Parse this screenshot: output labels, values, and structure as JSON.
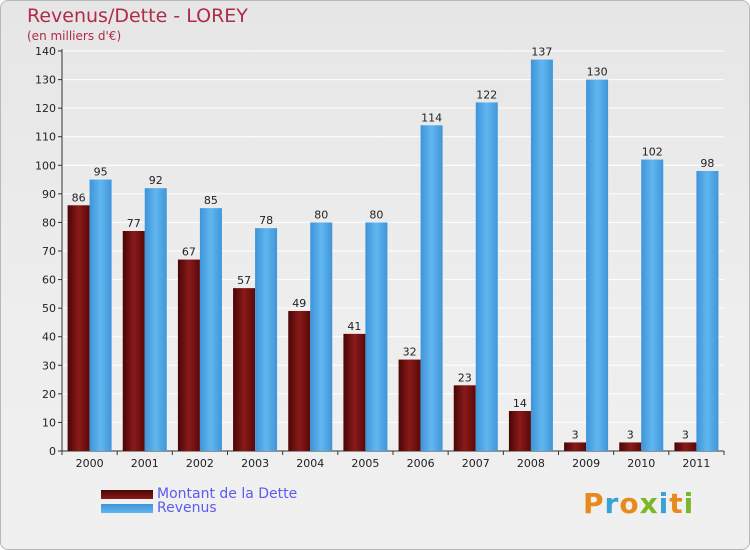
{
  "chart_data": {
    "type": "bar",
    "title": "Revenus/Dette - LOREY",
    "subtitle": "(en milliers d'€)",
    "categories": [
      "2000",
      "2001",
      "2002",
      "2003",
      "2004",
      "2005",
      "2006",
      "2007",
      "2008",
      "2009",
      "2010",
      "2011"
    ],
    "series": [
      {
        "name": "Montant de la Dette",
        "color": "#7a1010",
        "values": [
          86,
          77,
          67,
          57,
          49,
          41,
          32,
          23,
          14,
          3,
          3,
          3
        ]
      },
      {
        "name": "Revenus",
        "color": "#4da6e8",
        "values": [
          95,
          92,
          85,
          78,
          80,
          80,
          114,
          122,
          137,
          130,
          102,
          98
        ]
      }
    ],
    "ylim": [
      0,
      140
    ],
    "yticks": [
      0,
      10,
      20,
      30,
      40,
      50,
      60,
      70,
      80,
      90,
      100,
      110,
      120,
      130,
      140
    ],
    "grid": true,
    "legend_position": "bottom-left"
  },
  "brand": {
    "letters": [
      "P",
      "r",
      "o",
      "x",
      "i",
      "t",
      "i"
    ],
    "colors": [
      "#e8891c",
      "#3aa0d8",
      "#e8891c",
      "#7ab828",
      "#3aa0d8",
      "#e8891c",
      "#7ab828"
    ]
  }
}
